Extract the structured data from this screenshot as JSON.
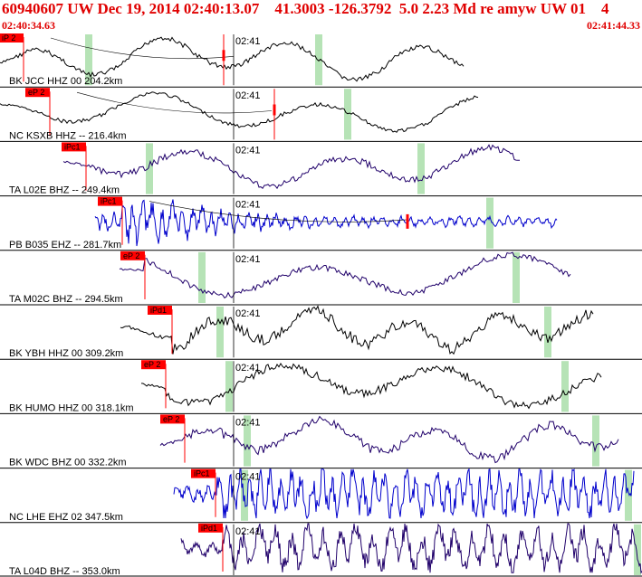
{
  "header": {
    "title": "60940607 UW Dec 19, 2014 02:40:13.07    41.3003 -126.3792  5.0 2.23 Md re amyw UW 01    4",
    "start_time": "02:40:34.63",
    "end_time": "02:41:44.33"
  },
  "colors": {
    "header_text": "#e00000",
    "pick_box": "#ff0000",
    "pick_line": "#ff0000",
    "trace_black": "#000000",
    "trace_blue": "#0000cc",
    "trace_indigo": "#20006a",
    "window_marker": "#b6e3b6",
    "separator": "#000000"
  },
  "tick_label": "02:41",
  "traces": [
    {
      "label": "BK JCC HHZ 00 204.2km",
      "pick": "iP 2",
      "color": "black"
    },
    {
      "label": "NC KSXB HHZ -- 216.4km",
      "pick": "eP 2",
      "color": "black"
    },
    {
      "label": "TA L02E BHZ -- 249.4km",
      "pick": "iPc1",
      "color": "indigo"
    },
    {
      "label": "PB B035 EHZ -- 281.7km",
      "pick": "iPc1",
      "color": "blue"
    },
    {
      "label": "TA M02C BHZ -- 294.5km",
      "pick": "eP 2",
      "color": "indigo"
    },
    {
      "label": "BK YBH HHZ 00 309.2km",
      "pick": "iPd1",
      "color": "black"
    },
    {
      "label": "BK HUMO HHZ 00 318.1km",
      "pick": "eP 2",
      "color": "black"
    },
    {
      "label": "BK WDC BHZ 00 332.2km",
      "pick": "eP 2",
      "color": "indigo"
    },
    {
      "label": "NC LHE EHZ 02 347.5km",
      "pick": "iPc1",
      "color": "blue"
    },
    {
      "label": "TA L04D BHZ -- 353.0km",
      "pick": "iPd1",
      "color": "indigo"
    }
  ]
}
